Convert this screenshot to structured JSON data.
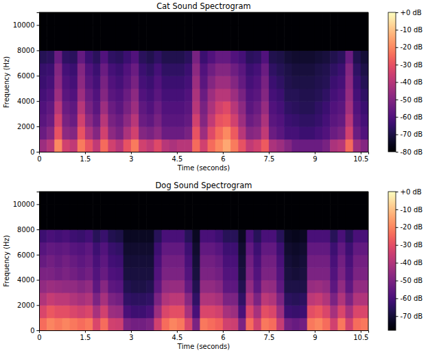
{
  "chart_data": [
    {
      "type": "heatmap",
      "title": "Cat Sound Spectrogram",
      "x_label": "Time (seconds)",
      "y_label": "Frequency (Hz)",
      "color": "magma",
      "xlim": [
        0,
        10.75
      ],
      "ylim": [
        0,
        11000
      ],
      "xticks": [
        0,
        1.5,
        3,
        4.5,
        6,
        7.5,
        9,
        10.5
      ],
      "yticks": [
        0,
        2000,
        4000,
        6000,
        8000,
        10000
      ],
      "x": [
        0,
        0.25,
        0.5,
        0.75,
        1,
        1.25,
        1.5,
        1.75,
        2,
        2.25,
        2.5,
        2.75,
        3,
        3.25,
        3.5,
        3.75,
        4,
        4.25,
        4.5,
        4.75,
        5,
        5.25,
        5.5,
        5.75,
        6,
        6.25,
        6.5,
        6.75,
        7,
        7.25,
        7.5,
        7.75,
        8,
        8.25,
        8.5,
        8.75,
        9,
        9.25,
        9.5,
        9.75,
        10,
        10.25,
        10.5
      ],
      "y": [
        0,
        1000,
        2000,
        3000,
        4000,
        5000,
        6000,
        7000,
        8000,
        9000,
        10000
      ],
      "values": [
        [
          -45,
          -40,
          -20,
          -35,
          -38,
          -22,
          -30,
          -38,
          -25,
          -35,
          -40,
          -30,
          -22,
          -35,
          -38,
          -32,
          -40,
          -42,
          -40,
          -40,
          -25,
          -35,
          -25,
          -20,
          -15,
          -22,
          -30,
          -38,
          -35,
          -28,
          -42,
          -45,
          -50,
          -55,
          -55,
          -55,
          -55,
          -52,
          -42,
          -40,
          -25,
          -45,
          -50
        ],
        [
          -55,
          -50,
          -30,
          -48,
          -50,
          -30,
          -42,
          -50,
          -35,
          -48,
          -52,
          -42,
          -35,
          -50,
          -52,
          -48,
          -55,
          -55,
          -55,
          -52,
          -30,
          -45,
          -32,
          -25,
          -20,
          -28,
          -40,
          -50,
          -48,
          -38,
          -55,
          -58,
          -62,
          -62,
          -64,
          -64,
          -62,
          -60,
          -55,
          -52,
          -35,
          -55,
          -60
        ],
        [
          -58,
          -55,
          -35,
          -52,
          -55,
          -35,
          -48,
          -55,
          -40,
          -52,
          -55,
          -48,
          -40,
          -55,
          -57,
          -52,
          -58,
          -58,
          -58,
          -56,
          -35,
          -50,
          -38,
          -30,
          -28,
          -35,
          -45,
          -55,
          -52,
          -42,
          -58,
          -60,
          -64,
          -65,
          -66,
          -66,
          -65,
          -62,
          -58,
          -56,
          -40,
          -58,
          -62
        ],
        [
          -60,
          -57,
          -40,
          -55,
          -57,
          -40,
          -52,
          -58,
          -45,
          -55,
          -58,
          -52,
          -45,
          -57,
          -60,
          -55,
          -60,
          -60,
          -60,
          -58,
          -40,
          -52,
          -42,
          -35,
          -32,
          -40,
          -48,
          -58,
          -55,
          -46,
          -60,
          -62,
          -66,
          -67,
          -68,
          -68,
          -66,
          -64,
          -60,
          -58,
          -44,
          -60,
          -64
        ],
        [
          -62,
          -60,
          -45,
          -58,
          -60,
          -45,
          -55,
          -60,
          -50,
          -58,
          -60,
          -55,
          -48,
          -60,
          -62,
          -58,
          -62,
          -62,
          -62,
          -60,
          -42,
          -55,
          -45,
          -40,
          -40,
          -45,
          -52,
          -60,
          -58,
          -50,
          -62,
          -64,
          -68,
          -68,
          -69,
          -69,
          -68,
          -66,
          -62,
          -60,
          -46,
          -62,
          -66
        ],
        [
          -64,
          -62,
          -48,
          -60,
          -62,
          -48,
          -58,
          -62,
          -52,
          -60,
          -62,
          -58,
          -52,
          -62,
          -64,
          -60,
          -64,
          -64,
          -64,
          -62,
          -45,
          -58,
          -50,
          -45,
          -45,
          -50,
          -56,
          -62,
          -60,
          -52,
          -64,
          -66,
          -69,
          -70,
          -70,
          -70,
          -69,
          -68,
          -64,
          -62,
          -48,
          -64,
          -68
        ],
        [
          -65,
          -64,
          -50,
          -62,
          -64,
          -50,
          -60,
          -64,
          -55,
          -62,
          -64,
          -60,
          -55,
          -64,
          -66,
          -62,
          -66,
          -66,
          -66,
          -64,
          -48,
          -60,
          -54,
          -50,
          -50,
          -54,
          -58,
          -64,
          -62,
          -55,
          -66,
          -68,
          -70,
          -71,
          -71,
          -71,
          -70,
          -69,
          -66,
          -64,
          -50,
          -66,
          -70
        ],
        [
          -68,
          -67,
          -55,
          -66,
          -67,
          -56,
          -64,
          -67,
          -60,
          -66,
          -67,
          -64,
          -60,
          -67,
          -69,
          -66,
          -69,
          -69,
          -69,
          -67,
          -52,
          -64,
          -60,
          -56,
          -56,
          -60,
          -62,
          -67,
          -66,
          -60,
          -69,
          -70,
          -72,
          -73,
          -73,
          -73,
          -72,
          -71,
          -69,
          -67,
          -55,
          -69,
          -72
        ],
        [
          -80,
          -80,
          -80,
          -80,
          -80,
          -80,
          -80,
          -80,
          -80,
          -80,
          -80,
          -80,
          -80,
          -80,
          -80,
          -80,
          -80,
          -80,
          -80,
          -80,
          -80,
          -80,
          -80,
          -80,
          -80,
          -80,
          -80,
          -80,
          -80,
          -80,
          -80,
          -80,
          -80,
          -80,
          -80,
          -80,
          -80,
          -80,
          -80,
          -80,
          -80,
          -80,
          -80
        ],
        [
          -80,
          -80,
          -80,
          -80,
          -80,
          -80,
          -80,
          -80,
          -80,
          -80,
          -80,
          -80,
          -80,
          -80,
          -80,
          -80,
          -80,
          -80,
          -80,
          -80,
          -80,
          -80,
          -80,
          -80,
          -80,
          -80,
          -80,
          -80,
          -80,
          -80,
          -80,
          -80,
          -80,
          -80,
          -80,
          -80,
          -80,
          -80,
          -80,
          -80,
          -80,
          -80,
          -80
        ],
        [
          -80,
          -80,
          -80,
          -80,
          -80,
          -80,
          -80,
          -80,
          -80,
          -80,
          -80,
          -80,
          -80,
          -80,
          -80,
          -80,
          -80,
          -80,
          -80,
          -80,
          -80,
          -80,
          -80,
          -80,
          -80,
          -80,
          -80,
          -80,
          -80,
          -80,
          -80,
          -80,
          -80,
          -80,
          -80,
          -80,
          -80,
          -80,
          -80,
          -80,
          -80,
          -80,
          -80
        ]
      ],
      "colorbar": {
        "range": [
          -80,
          0
        ],
        "ticks": [
          {
            "value": 0,
            "label": "+0 dB"
          },
          {
            "value": -10,
            "label": "-10 dB"
          },
          {
            "value": -20,
            "label": "-20 dB"
          },
          {
            "value": -30,
            "label": "-30 dB"
          },
          {
            "value": -40,
            "label": "-40 dB"
          },
          {
            "value": -50,
            "label": "-50 dB"
          },
          {
            "value": -60,
            "label": "-60 dB"
          },
          {
            "value": -70,
            "label": "-70 dB"
          },
          {
            "value": -80,
            "label": "-80 dB"
          }
        ]
      }
    },
    {
      "type": "heatmap",
      "title": "Dog Sound Spectrogram",
      "x_label": "Time (seconds)",
      "y_label": "Frequency (Hz)",
      "color": "magma",
      "xlim": [
        0,
        10.75
      ],
      "ylim": [
        0,
        11000
      ],
      "xticks": [
        0,
        1.5,
        3,
        4.5,
        6,
        7.5,
        9,
        10.5
      ],
      "yticks": [
        0,
        2000,
        4000,
        6000,
        8000,
        10000
      ],
      "x": [
        0,
        0.25,
        0.5,
        0.75,
        1,
        1.25,
        1.5,
        1.75,
        2,
        2.25,
        2.5,
        2.75,
        3,
        3.25,
        3.5,
        3.75,
        4,
        4.25,
        4.5,
        4.75,
        5,
        5.25,
        5.5,
        5.75,
        6,
        6.25,
        6.5,
        6.75,
        7,
        7.25,
        7.5,
        7.75,
        8,
        8.25,
        8.5,
        8.75,
        9,
        9.25,
        9.5,
        9.75,
        10,
        10.25,
        10.5
      ],
      "y": [
        0,
        1000,
        2000,
        3000,
        4000,
        5000,
        6000,
        7000,
        8000,
        9000,
        10000
      ],
      "values": [
        [
          -24,
          -20,
          -22,
          -20,
          -22,
          -24,
          -22,
          -32,
          -24,
          -34,
          -35,
          -50,
          -52,
          -52,
          -50,
          -34,
          -24,
          -20,
          -22,
          -32,
          -50,
          -22,
          -24,
          -26,
          -34,
          -35,
          -50,
          -24,
          -34,
          -22,
          -24,
          -36,
          -52,
          -54,
          -52,
          -22,
          -20,
          -24,
          -34,
          -22,
          -34,
          -24,
          -22
        ],
        [
          -32,
          -28,
          -30,
          -30,
          -32,
          -34,
          -32,
          -42,
          -34,
          -44,
          -45,
          -60,
          -62,
          -62,
          -60,
          -44,
          -32,
          -30,
          -30,
          -42,
          -60,
          -32,
          -32,
          -34,
          -42,
          -44,
          -60,
          -32,
          -42,
          -30,
          -32,
          -44,
          -62,
          -63,
          -62,
          -30,
          -28,
          -32,
          -42,
          -32,
          -42,
          -32,
          -32
        ],
        [
          -40,
          -36,
          -38,
          -38,
          -40,
          -42,
          -40,
          -50,
          -42,
          -50,
          -52,
          -64,
          -65,
          -65,
          -64,
          -50,
          -40,
          -38,
          -38,
          -48,
          -64,
          -40,
          -40,
          -42,
          -50,
          -50,
          -64,
          -40,
          -50,
          -38,
          -40,
          -50,
          -65,
          -66,
          -65,
          -38,
          -36,
          -40,
          -50,
          -40,
          -50,
          -40,
          -40
        ],
        [
          -46,
          -44,
          -45,
          -46,
          -46,
          -48,
          -46,
          -56,
          -48,
          -56,
          -57,
          -67,
          -68,
          -68,
          -67,
          -56,
          -46,
          -45,
          -45,
          -55,
          -67,
          -46,
          -46,
          -48,
          -56,
          -56,
          -67,
          -46,
          -56,
          -45,
          -46,
          -56,
          -68,
          -68,
          -68,
          -45,
          -44,
          -46,
          -56,
          -46,
          -56,
          -46,
          -46
        ],
        [
          -50,
          -50,
          -52,
          -50,
          -52,
          -54,
          -52,
          -58,
          -54,
          -59,
          -60,
          -69,
          -69,
          -69,
          -69,
          -58,
          -50,
          -50,
          -50,
          -58,
          -69,
          -50,
          -50,
          -52,
          -58,
          -58,
          -69,
          -50,
          -58,
          -50,
          -50,
          -58,
          -69,
          -70,
          -69,
          -50,
          -50,
          -50,
          -58,
          -50,
          -58,
          -50,
          -50
        ],
        [
          -54,
          -52,
          -54,
          -52,
          -54,
          -56,
          -54,
          -60,
          -56,
          -61,
          -62,
          -70,
          -70,
          -70,
          -70,
          -60,
          -52,
          -52,
          -52,
          -60,
          -70,
          -52,
          -52,
          -54,
          -60,
          -60,
          -70,
          -52,
          -60,
          -52,
          -52,
          -60,
          -70,
          -71,
          -70,
          -52,
          -52,
          -52,
          -60,
          -52,
          -60,
          -52,
          -52
        ],
        [
          -57,
          -55,
          -56,
          -55,
          -57,
          -58,
          -56,
          -62,
          -58,
          -63,
          -64,
          -71,
          -71,
          -71,
          -71,
          -62,
          -55,
          -55,
          -55,
          -62,
          -71,
          -55,
          -55,
          -57,
          -62,
          -62,
          -71,
          -55,
          -62,
          -55,
          -55,
          -62,
          -71,
          -72,
          -71,
          -55,
          -55,
          -55,
          -62,
          -55,
          -62,
          -55,
          -55
        ],
        [
          -62,
          -60,
          -61,
          -60,
          -62,
          -63,
          -61,
          -66,
          -63,
          -67,
          -68,
          -73,
          -73,
          -73,
          -73,
          -66,
          -60,
          -60,
          -60,
          -66,
          -73,
          -60,
          -60,
          -62,
          -66,
          -66,
          -73,
          -60,
          -66,
          -60,
          -60,
          -66,
          -73,
          -74,
          -73,
          -60,
          -60,
          -60,
          -66,
          -60,
          -66,
          -60,
          -60
        ],
        [
          -78,
          -78,
          -78,
          -78,
          -78,
          -78,
          -78,
          -78,
          -78,
          -78,
          -78,
          -78,
          -78,
          -78,
          -78,
          -78,
          -78,
          -78,
          -78,
          -78,
          -78,
          -78,
          -78,
          -78,
          -78,
          -78,
          -78,
          -78,
          -78,
          -78,
          -78,
          -78,
          -78,
          -78,
          -78,
          -78,
          -78,
          -78,
          -78,
          -78,
          -78,
          -78,
          -78
        ],
        [
          -78,
          -78,
          -78,
          -78,
          -78,
          -78,
          -78,
          -78,
          -78,
          -78,
          -78,
          -78,
          -78,
          -78,
          -78,
          -78,
          -78,
          -78,
          -78,
          -78,
          -78,
          -78,
          -78,
          -78,
          -78,
          -78,
          -78,
          -78,
          -78,
          -78,
          -78,
          -78,
          -78,
          -78,
          -78,
          -78,
          -78,
          -78,
          -78,
          -78,
          -78,
          -78,
          -78
        ],
        [
          -78,
          -78,
          -78,
          -78,
          -78,
          -78,
          -78,
          -78,
          -78,
          -78,
          -78,
          -78,
          -78,
          -78,
          -78,
          -78,
          -78,
          -78,
          -78,
          -78,
          -78,
          -78,
          -78,
          -78,
          -78,
          -78,
          -78,
          -78,
          -78,
          -78,
          -78,
          -78,
          -78,
          -78,
          -78,
          -78,
          -78,
          -78,
          -78,
          -78,
          -78,
          -78,
          -78
        ]
      ],
      "colorbar": {
        "range": [
          -78,
          0
        ],
        "ticks": [
          {
            "value": 0,
            "label": "+0 dB"
          },
          {
            "value": -10,
            "label": "-10 dB"
          },
          {
            "value": -20,
            "label": "-20 dB"
          },
          {
            "value": -30,
            "label": "-30 dB"
          },
          {
            "value": -40,
            "label": "-40 dB"
          },
          {
            "value": -50,
            "label": "-50 dB"
          },
          {
            "value": -60,
            "label": "-60 dB"
          },
          {
            "value": -70,
            "label": "-70 dB"
          }
        ]
      }
    }
  ]
}
